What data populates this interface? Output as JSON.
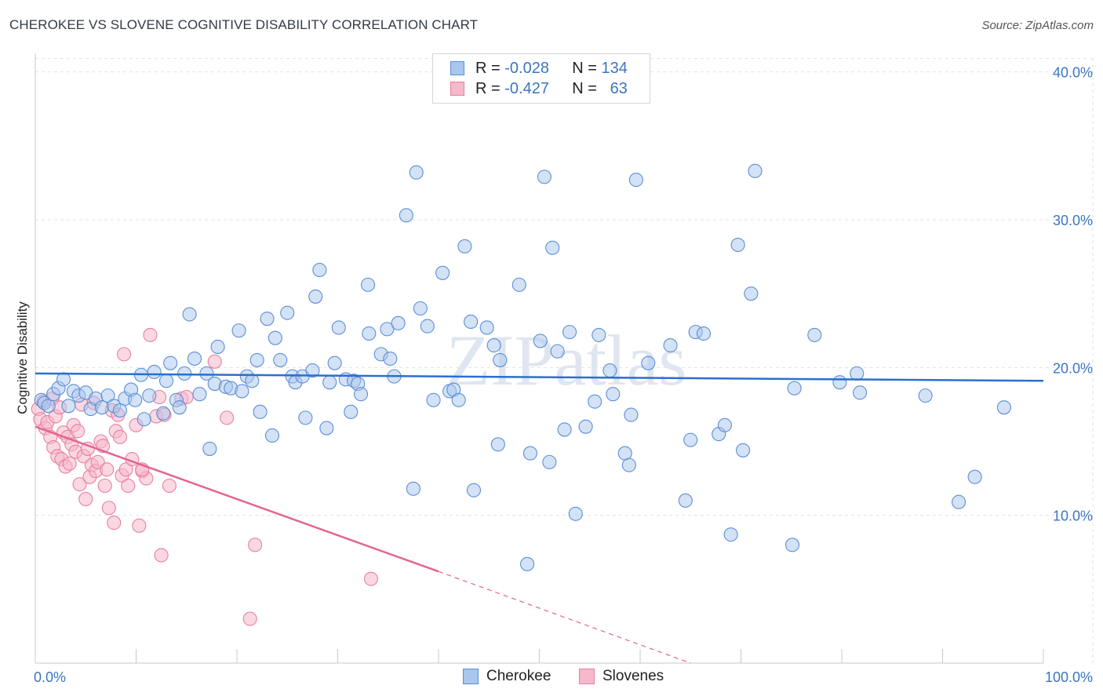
{
  "title": "CHEROKEE VS SLOVENE COGNITIVE DISABILITY CORRELATION CHART",
  "source": "Source: ZipAtlas.com",
  "watermark": "ZIPatlas",
  "legend": {
    "rows": [
      {
        "r_label": "R =",
        "r_value": "-0.028",
        "n_label": "N =",
        "n_value": "134"
      },
      {
        "r_label": "R =",
        "r_value": "-0.427",
        "n_label": "N =",
        "n_value": "63"
      }
    ]
  },
  "bottom_legend": [
    "Cherokee",
    "Slovenes"
  ],
  "colors": {
    "cherokee_fill": "#a9c6ee",
    "cherokee_stroke": "#5b8fd6",
    "cherokee_line": "#2a6fd1",
    "slovene_fill": "#f6b8cb",
    "slovene_stroke": "#e97fa0",
    "slovene_line": "#e46590",
    "tick_text": "#3b76c4",
    "grid": "#e2e2e2"
  },
  "chart_data": {
    "type": "scatter",
    "title": "CHEROKEE VS SLOVENE COGNITIVE DISABILITY CORRELATION CHART",
    "xlabel": "",
    "ylabel": "Cognitive Disability",
    "xlim": [
      0,
      100
    ],
    "ylim": [
      0,
      42
    ],
    "x_tick_labels": [
      "0.0%",
      "100.0%"
    ],
    "y_ticks": [
      10,
      20,
      30,
      40
    ],
    "y_tick_labels": [
      "10.0%",
      "20.0%",
      "30.0%",
      "40.0%"
    ],
    "grid": true,
    "legend_position": "top-center",
    "series": [
      {
        "name": "Cherokee",
        "r": -0.028,
        "n": 134,
        "trend": {
          "x": [
            0,
            100
          ],
          "y": [
            19.6,
            19.1
          ]
        },
        "points": [
          [
            0.6,
            17.8
          ],
          [
            0.9,
            17.6
          ],
          [
            1.3,
            17.4
          ],
          [
            1.8,
            18.2
          ],
          [
            2.3,
            18.6
          ],
          [
            2.8,
            19.2
          ],
          [
            3.3,
            17.4
          ],
          [
            3.8,
            18.4
          ],
          [
            4.3,
            18.1
          ],
          [
            5.0,
            18.3
          ],
          [
            5.5,
            17.2
          ],
          [
            6.0,
            17.9
          ],
          [
            6.6,
            17.3
          ],
          [
            7.2,
            18.1
          ],
          [
            7.8,
            17.4
          ],
          [
            8.4,
            17.1
          ],
          [
            8.9,
            17.9
          ],
          [
            9.5,
            18.5
          ],
          [
            9.9,
            17.8
          ],
          [
            10.5,
            19.5
          ],
          [
            10.8,
            16.5
          ],
          [
            11.3,
            18.1
          ],
          [
            11.8,
            19.7
          ],
          [
            12.7,
            16.9
          ],
          [
            13.0,
            19.1
          ],
          [
            13.4,
            20.3
          ],
          [
            14.0,
            17.8
          ],
          [
            14.3,
            17.3
          ],
          [
            14.8,
            19.6
          ],
          [
            15.3,
            23.6
          ],
          [
            15.8,
            20.6
          ],
          [
            16.3,
            18.2
          ],
          [
            17.0,
            19.6
          ],
          [
            17.3,
            14.5
          ],
          [
            17.8,
            18.9
          ],
          [
            18.1,
            21.4
          ],
          [
            18.9,
            18.7
          ],
          [
            19.4,
            18.6
          ],
          [
            20.2,
            22.5
          ],
          [
            20.5,
            18.4
          ],
          [
            21.0,
            19.4
          ],
          [
            21.5,
            19.1
          ],
          [
            22.0,
            20.5
          ],
          [
            22.3,
            17.0
          ],
          [
            23.0,
            23.3
          ],
          [
            23.5,
            15.4
          ],
          [
            23.8,
            22.0
          ],
          [
            24.3,
            20.5
          ],
          [
            25.0,
            23.7
          ],
          [
            25.5,
            19.4
          ],
          [
            25.8,
            19.0
          ],
          [
            26.5,
            19.4
          ],
          [
            26.8,
            16.6
          ],
          [
            27.5,
            19.8
          ],
          [
            27.8,
            24.8
          ],
          [
            28.2,
            26.6
          ],
          [
            28.9,
            15.9
          ],
          [
            29.2,
            19.0
          ],
          [
            29.7,
            20.3
          ],
          [
            30.1,
            22.7
          ],
          [
            30.8,
            19.2
          ],
          [
            31.3,
            17.0
          ],
          [
            31.6,
            19.1
          ],
          [
            32.0,
            18.9
          ],
          [
            32.3,
            18.2
          ],
          [
            33.0,
            25.6
          ],
          [
            33.1,
            22.3
          ],
          [
            34.3,
            20.9
          ],
          [
            34.9,
            22.6
          ],
          [
            35.2,
            20.6
          ],
          [
            35.6,
            19.4
          ],
          [
            36.0,
            23.0
          ],
          [
            36.8,
            30.3
          ],
          [
            37.5,
            11.8
          ],
          [
            37.8,
            33.2
          ],
          [
            38.2,
            24.0
          ],
          [
            38.9,
            22.8
          ],
          [
            39.5,
            17.8
          ],
          [
            40.4,
            26.4
          ],
          [
            41.1,
            18.4
          ],
          [
            41.5,
            18.5
          ],
          [
            42.0,
            17.8
          ],
          [
            42.6,
            28.2
          ],
          [
            43.2,
            23.1
          ],
          [
            43.5,
            11.7
          ],
          [
            44.8,
            22.7
          ],
          [
            45.5,
            21.5
          ],
          [
            45.9,
            14.8
          ],
          [
            46.1,
            20.5
          ],
          [
            48.0,
            25.6
          ],
          [
            48.8,
            6.7
          ],
          [
            49.1,
            14.2
          ],
          [
            50.1,
            21.8
          ],
          [
            50.5,
            32.9
          ],
          [
            51.0,
            13.6
          ],
          [
            51.3,
            28.1
          ],
          [
            51.8,
            21.1
          ],
          [
            52.5,
            15.8
          ],
          [
            53.0,
            22.4
          ],
          [
            53.6,
            10.1
          ],
          [
            54.6,
            16.0
          ],
          [
            55.5,
            17.7
          ],
          [
            55.9,
            22.2
          ],
          [
            57.0,
            19.8
          ],
          [
            57.3,
            18.2
          ],
          [
            58.5,
            14.2
          ],
          [
            58.9,
            13.4
          ],
          [
            59.1,
            16.8
          ],
          [
            59.6,
            32.7
          ],
          [
            60.8,
            20.3
          ],
          [
            63.0,
            21.5
          ],
          [
            64.5,
            11.0
          ],
          [
            65.0,
            15.1
          ],
          [
            65.5,
            22.4
          ],
          [
            66.3,
            22.3
          ],
          [
            67.8,
            15.5
          ],
          [
            68.4,
            16.1
          ],
          [
            69.0,
            8.7
          ],
          [
            69.7,
            28.3
          ],
          [
            70.2,
            14.4
          ],
          [
            71.0,
            25.0
          ],
          [
            71.4,
            33.3
          ],
          [
            75.1,
            8.0
          ],
          [
            75.3,
            18.6
          ],
          [
            77.3,
            22.2
          ],
          [
            79.8,
            19.0
          ],
          [
            81.5,
            19.6
          ],
          [
            81.8,
            18.3
          ],
          [
            88.3,
            18.1
          ],
          [
            91.6,
            10.9
          ],
          [
            93.2,
            12.6
          ],
          [
            96.1,
            17.3
          ]
        ]
      },
      {
        "name": "Slovenes",
        "r": -0.427,
        "n": 63,
        "trend": {
          "x": [
            0,
            40
          ],
          "y": [
            16.0,
            6.2
          ]
        },
        "trend_dashed": {
          "x": [
            40,
            65
          ],
          "y": [
            6.2,
            0.0
          ]
        },
        "points": [
          [
            0.3,
            17.2
          ],
          [
            0.5,
            16.5
          ],
          [
            0.8,
            17.7
          ],
          [
            1.0,
            15.9
          ],
          [
            1.2,
            16.3
          ],
          [
            1.5,
            15.3
          ],
          [
            1.7,
            17.9
          ],
          [
            1.8,
            14.6
          ],
          [
            2.0,
            16.7
          ],
          [
            2.2,
            14.0
          ],
          [
            2.4,
            17.3
          ],
          [
            2.6,
            13.8
          ],
          [
            2.8,
            15.6
          ],
          [
            3.0,
            13.3
          ],
          [
            3.2,
            15.3
          ],
          [
            3.4,
            13.5
          ],
          [
            3.6,
            14.8
          ],
          [
            3.8,
            16.1
          ],
          [
            4.0,
            14.3
          ],
          [
            4.2,
            15.7
          ],
          [
            4.4,
            12.1
          ],
          [
            4.6,
            17.5
          ],
          [
            4.8,
            14.0
          ],
          [
            5.0,
            11.1
          ],
          [
            5.2,
            14.5
          ],
          [
            5.4,
            12.6
          ],
          [
            5.6,
            13.4
          ],
          [
            5.8,
            17.6
          ],
          [
            6.0,
            13.0
          ],
          [
            6.2,
            13.6
          ],
          [
            6.5,
            15.0
          ],
          [
            6.7,
            14.7
          ],
          [
            6.9,
            12.0
          ],
          [
            7.1,
            13.1
          ],
          [
            7.3,
            10.5
          ],
          [
            7.6,
            17.1
          ],
          [
            7.8,
            9.5
          ],
          [
            8.0,
            15.7
          ],
          [
            8.2,
            16.8
          ],
          [
            8.4,
            15.3
          ],
          [
            8.6,
            12.7
          ],
          [
            8.8,
            20.9
          ],
          [
            9.0,
            13.1
          ],
          [
            9.2,
            12.0
          ],
          [
            9.6,
            13.8
          ],
          [
            10.0,
            16.1
          ],
          [
            10.3,
            9.3
          ],
          [
            10.6,
            13.0
          ],
          [
            11.0,
            12.5
          ],
          [
            11.4,
            22.2
          ],
          [
            12.0,
            16.7
          ],
          [
            12.3,
            18.0
          ],
          [
            12.5,
            7.3
          ],
          [
            12.8,
            16.8
          ],
          [
            13.3,
            12.0
          ],
          [
            14.5,
            17.9
          ],
          [
            15.0,
            18.0
          ],
          [
            17.8,
            20.4
          ],
          [
            19.0,
            16.6
          ],
          [
            21.3,
            3.0
          ],
          [
            21.8,
            8.0
          ],
          [
            33.3,
            5.7
          ],
          [
            10.6,
            13.1
          ]
        ]
      }
    ]
  }
}
